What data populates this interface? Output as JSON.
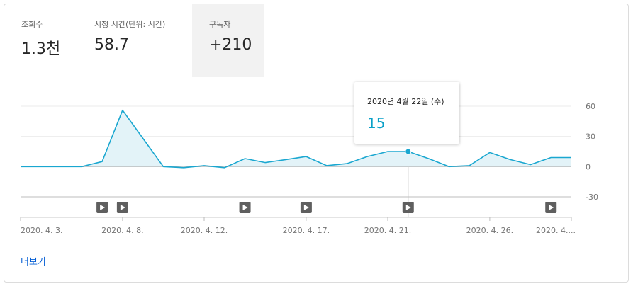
{
  "metrics": [
    {
      "label": "조회수",
      "value": "1.3천",
      "selected": false
    },
    {
      "label": "시청 시간(단위: 시간)",
      "value": "58.7",
      "selected": false
    },
    {
      "label": "구독자",
      "value": "+210",
      "selected": true
    }
  ],
  "tooltip": {
    "date": "2020년 4월 22일 (수)",
    "value": "15"
  },
  "see_more": "더보기",
  "colors": {
    "line": "#1aa7d0",
    "area": "#e3f3f8",
    "tooltip_value": "#0aa0c8",
    "marker": "#5f5f5f",
    "link": "#065fd4"
  },
  "chart_data": {
    "type": "area",
    "x": [
      "2020-04-03",
      "2020-04-04",
      "2020-04-05",
      "2020-04-06",
      "2020-04-07",
      "2020-04-08",
      "2020-04-09",
      "2020-04-10",
      "2020-04-11",
      "2020-04-12",
      "2020-04-13",
      "2020-04-14",
      "2020-04-15",
      "2020-04-16",
      "2020-04-17",
      "2020-04-18",
      "2020-04-19",
      "2020-04-20",
      "2020-04-21",
      "2020-04-22",
      "2020-04-23",
      "2020-04-24",
      "2020-04-25",
      "2020-04-26",
      "2020-04-27",
      "2020-04-28",
      "2020-04-29",
      "2020-04-30"
    ],
    "series": [
      {
        "values": [
          0,
          0,
          0,
          0,
          5,
          56,
          28,
          0,
          -1,
          1,
          -1,
          8,
          4,
          7,
          10,
          1,
          3,
          10,
          15,
          15,
          8,
          0,
          1,
          14,
          7,
          2,
          9,
          9
        ]
      }
    ],
    "x_tick_labels": [
      {
        "date": "2020-04-03",
        "label": "2020. 4. 3."
      },
      {
        "date": "2020-04-08",
        "label": "2020. 4. 8."
      },
      {
        "date": "2020-04-12",
        "label": "2020. 4. 12."
      },
      {
        "date": "2020-04-17",
        "label": "2020. 4. 17."
      },
      {
        "date": "2020-04-21",
        "label": "2020. 4. 21."
      },
      {
        "date": "2020-04-26",
        "label": "2020. 4. 26."
      },
      {
        "date": "2020-04-30",
        "label": "2020. 4...."
      }
    ],
    "y_ticks": [
      60,
      30,
      0,
      -30
    ],
    "ylim": [
      -30,
      60
    ],
    "grid": true,
    "highlight_date": "2020-04-22",
    "video_markers": [
      "2020-04-07",
      "2020-04-08",
      "2020-04-14",
      "2020-04-17",
      "2020-04-22",
      "2020-04-29"
    ]
  }
}
